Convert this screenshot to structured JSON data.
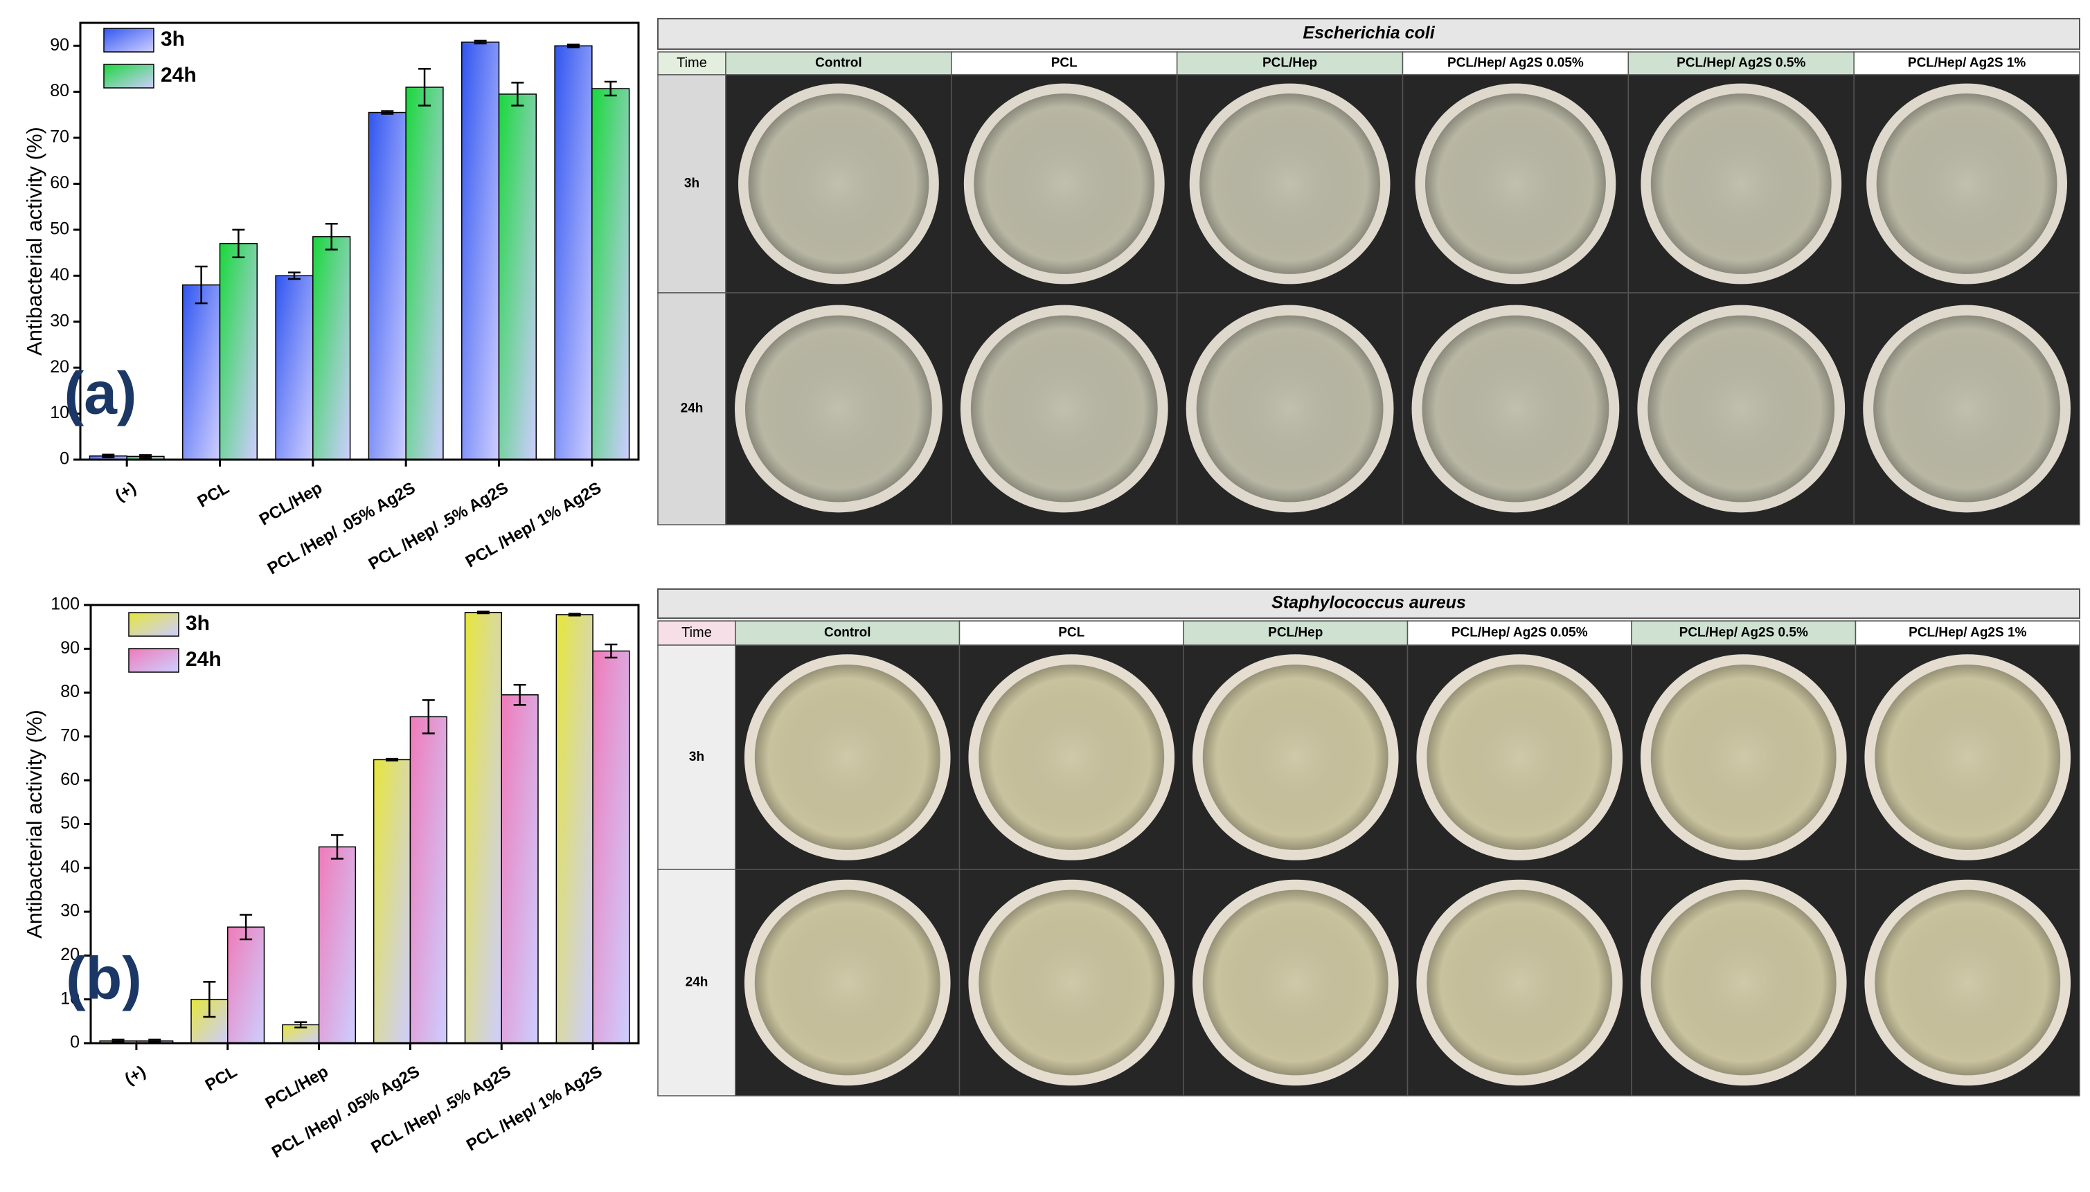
{
  "chart_data": [
    {
      "type": "bar",
      "annotation": "(a)",
      "y_label": "Antibacterial activity (%)",
      "categories": [
        "(+)",
        "PCL",
        "PCL/Hep",
        "PCL /Hep/ .05% Ag2S",
        "PCL /Hep/ .5% Ag2S",
        "PCL /Hep/ 1% Ag2S"
      ],
      "series": [
        {
          "name": "3h",
          "color": "#2f55f0",
          "values": [
            0.8,
            38,
            40,
            75.5,
            90.8,
            90
          ],
          "errors": [
            0.3,
            4,
            0.7,
            0.3,
            0.3,
            0.3
          ]
        },
        {
          "name": "24h",
          "color": "#18d83a",
          "values": [
            0.7,
            47,
            48.5,
            81,
            79.5,
            80.7
          ],
          "errors": [
            0.3,
            3,
            2.8,
            4,
            2.5,
            1.5
          ]
        }
      ],
      "ylim": [
        0,
        95
      ],
      "yticks": [
        0,
        10,
        20,
        30,
        40,
        50,
        60,
        70,
        80,
        90
      ],
      "legend": "upper-left"
    },
    {
      "type": "bar",
      "annotation": "(b)",
      "y_label": "Antibacterial activity (%)",
      "categories": [
        "(+)",
        "PCL",
        "PCL/Hep",
        "PCL /Hep/ .05% Ag2S",
        "PCL /Hep/ .5% Ag2S",
        "PCL /Hep/ 1% Ag2S"
      ],
      "series": [
        {
          "name": "3h",
          "color": "#e6e63a",
          "values": [
            0.5,
            10,
            4.2,
            64.7,
            98.3,
            97.8
          ],
          "errors": [
            0.3,
            4,
            0.6,
            0.2,
            0.2,
            0.2
          ]
        },
        {
          "name": "24h",
          "color": "#f07ab8",
          "values": [
            0.5,
            26.5,
            44.8,
            74.5,
            79.5,
            89.5
          ],
          "errors": [
            0.3,
            2.8,
            2.7,
            3.8,
            2.3,
            1.5
          ]
        }
      ],
      "ylim": [
        0,
        100
      ],
      "yticks": [
        0,
        10,
        20,
        30,
        40,
        50,
        60,
        70,
        80,
        90,
        100
      ],
      "legend": "upper-left"
    }
  ],
  "plates": [
    {
      "title": "Escherichia coli",
      "corner": "Time",
      "columns": [
        "Control",
        "PCL",
        "PCL/Hep",
        "PCL/Hep/ Ag2S 0.05%",
        "PCL/Hep/ Ag2S 0.5%",
        "PCL/Hep/ Ag2S 1%"
      ],
      "rows": [
        "3h",
        "24h"
      ]
    },
    {
      "title": "Staphylococcus aureus",
      "corner": "Time",
      "columns": [
        "Control",
        "PCL",
        "PCL/Hep",
        "PCL/Hep/ Ag2S 0.05%",
        "PCL/Hep/ Ag2S 0.5%",
        "PCL/Hep/ Ag2S 1%"
      ],
      "rows": [
        "3h",
        "24h"
      ]
    }
  ]
}
